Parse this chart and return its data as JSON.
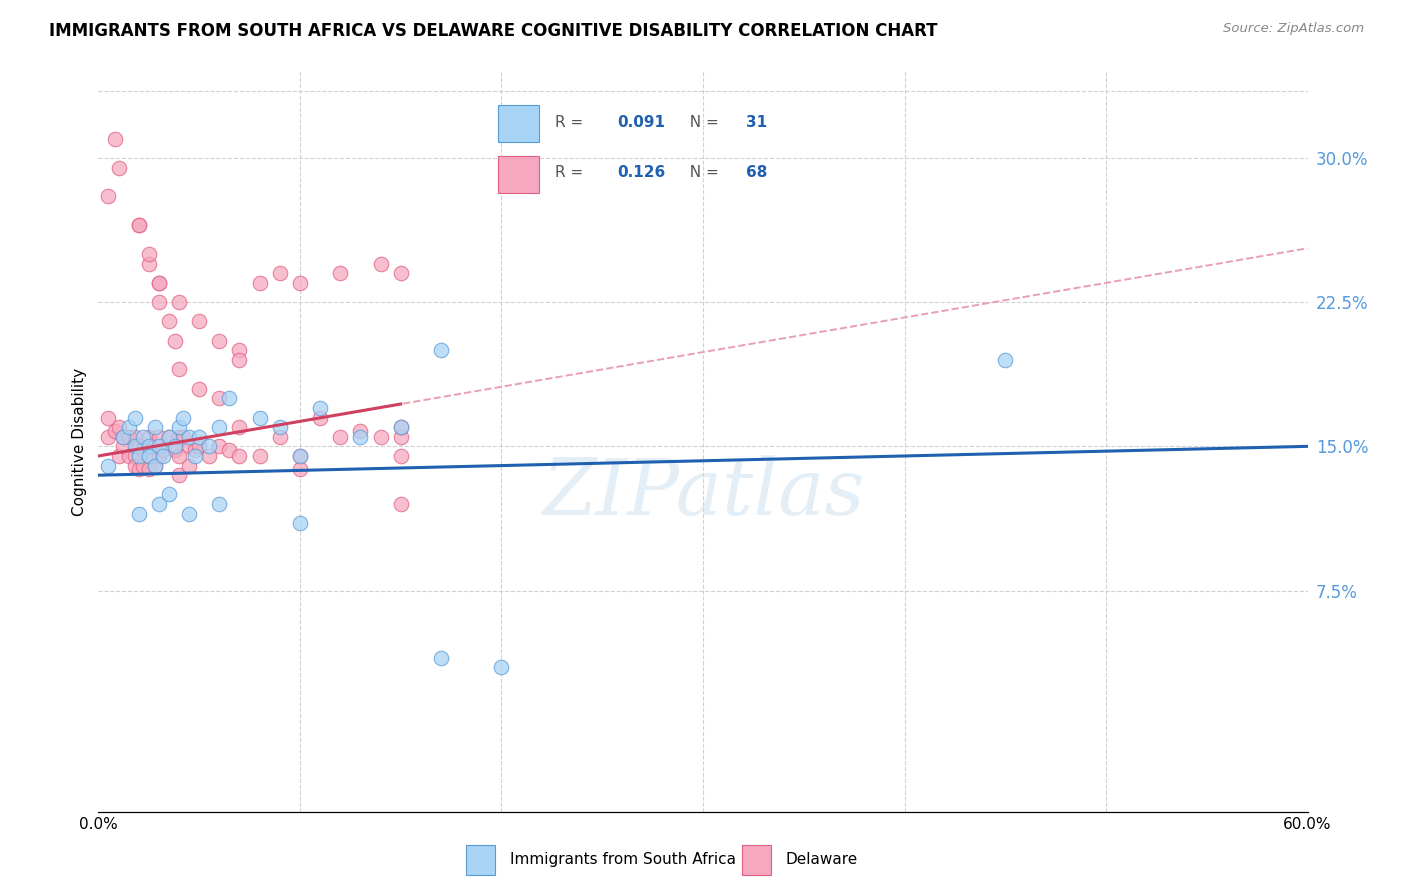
{
  "title": "IMMIGRANTS FROM SOUTH AFRICA VS DELAWARE COGNITIVE DISABILITY CORRELATION CHART",
  "source": "Source: ZipAtlas.com",
  "ylabel": "Cognitive Disability",
  "ytick_labels": [
    "7.5%",
    "15.0%",
    "22.5%",
    "30.0%"
  ],
  "ytick_values": [
    0.075,
    0.15,
    0.225,
    0.3
  ],
  "xlim": [
    0.0,
    0.6
  ],
  "ylim": [
    -0.04,
    0.345
  ],
  "legend1_r": "0.091",
  "legend1_n": "31",
  "legend2_r": "0.126",
  "legend2_n": "68",
  "color_blue": "#a8d4f5",
  "color_pink": "#f5a8c0",
  "edge_blue": "#5b9bd5",
  "edge_pink": "#e06080",
  "trendline_blue": "#2060b0",
  "trendline_pink": "#d04060",
  "trendline_dashed_color": "#e8a0b0",
  "watermark": "ZIPatlas",
  "blue_points_x": [
    0.005,
    0.012,
    0.015,
    0.018,
    0.018,
    0.02,
    0.022,
    0.025,
    0.025,
    0.028,
    0.028,
    0.03,
    0.032,
    0.035,
    0.038,
    0.04,
    0.042,
    0.045,
    0.048,
    0.05,
    0.055,
    0.06,
    0.065,
    0.08,
    0.09,
    0.1,
    0.11,
    0.13,
    0.15,
    0.45,
    0.17
  ],
  "blue_points_y": [
    0.14,
    0.155,
    0.16,
    0.165,
    0.15,
    0.145,
    0.155,
    0.15,
    0.145,
    0.16,
    0.14,
    0.15,
    0.145,
    0.155,
    0.15,
    0.16,
    0.165,
    0.155,
    0.145,
    0.155,
    0.15,
    0.16,
    0.175,
    0.165,
    0.16,
    0.145,
    0.17,
    0.155,
    0.16,
    0.195,
    0.2
  ],
  "blue_low_x": [
    0.02,
    0.03,
    0.035,
    0.045,
    0.06,
    0.1,
    0.17,
    0.2
  ],
  "blue_low_y": [
    0.115,
    0.12,
    0.125,
    0.115,
    0.12,
    0.11,
    0.04,
    0.035
  ],
  "pink_points_x": [
    0.005,
    0.005,
    0.008,
    0.01,
    0.01,
    0.012,
    0.012,
    0.015,
    0.015,
    0.018,
    0.018,
    0.018,
    0.02,
    0.02,
    0.022,
    0.022,
    0.025,
    0.025,
    0.025,
    0.028,
    0.028,
    0.03,
    0.03,
    0.032,
    0.035,
    0.038,
    0.04,
    0.04,
    0.04,
    0.042,
    0.045,
    0.045,
    0.048,
    0.05,
    0.055,
    0.06,
    0.065,
    0.07,
    0.07,
    0.08,
    0.09,
    0.1,
    0.1,
    0.11,
    0.12,
    0.13,
    0.14,
    0.15,
    0.15,
    0.15,
    0.005,
    0.02,
    0.025,
    0.03,
    0.03,
    0.035,
    0.038,
    0.04,
    0.05,
    0.06,
    0.07,
    0.08,
    0.09,
    0.1,
    0.12,
    0.14,
    0.15,
    0.15
  ],
  "pink_points_y": [
    0.155,
    0.165,
    0.158,
    0.16,
    0.145,
    0.155,
    0.15,
    0.155,
    0.145,
    0.155,
    0.145,
    0.14,
    0.15,
    0.138,
    0.148,
    0.14,
    0.155,
    0.145,
    0.138,
    0.15,
    0.14,
    0.155,
    0.145,
    0.148,
    0.155,
    0.148,
    0.155,
    0.145,
    0.135,
    0.155,
    0.15,
    0.14,
    0.148,
    0.15,
    0.145,
    0.15,
    0.148,
    0.16,
    0.145,
    0.145,
    0.155,
    0.145,
    0.138,
    0.165,
    0.155,
    0.158,
    0.155,
    0.155,
    0.145,
    0.12,
    0.28,
    0.265,
    0.245,
    0.235,
    0.225,
    0.215,
    0.205,
    0.19,
    0.18,
    0.175,
    0.2,
    0.235,
    0.24,
    0.235,
    0.24,
    0.245,
    0.24,
    0.16
  ],
  "pink_high_x": [
    0.008,
    0.01,
    0.02,
    0.025,
    0.03,
    0.04,
    0.05,
    0.06,
    0.07
  ],
  "pink_high_y": [
    0.31,
    0.295,
    0.265,
    0.25,
    0.235,
    0.225,
    0.215,
    0.205,
    0.195
  ]
}
